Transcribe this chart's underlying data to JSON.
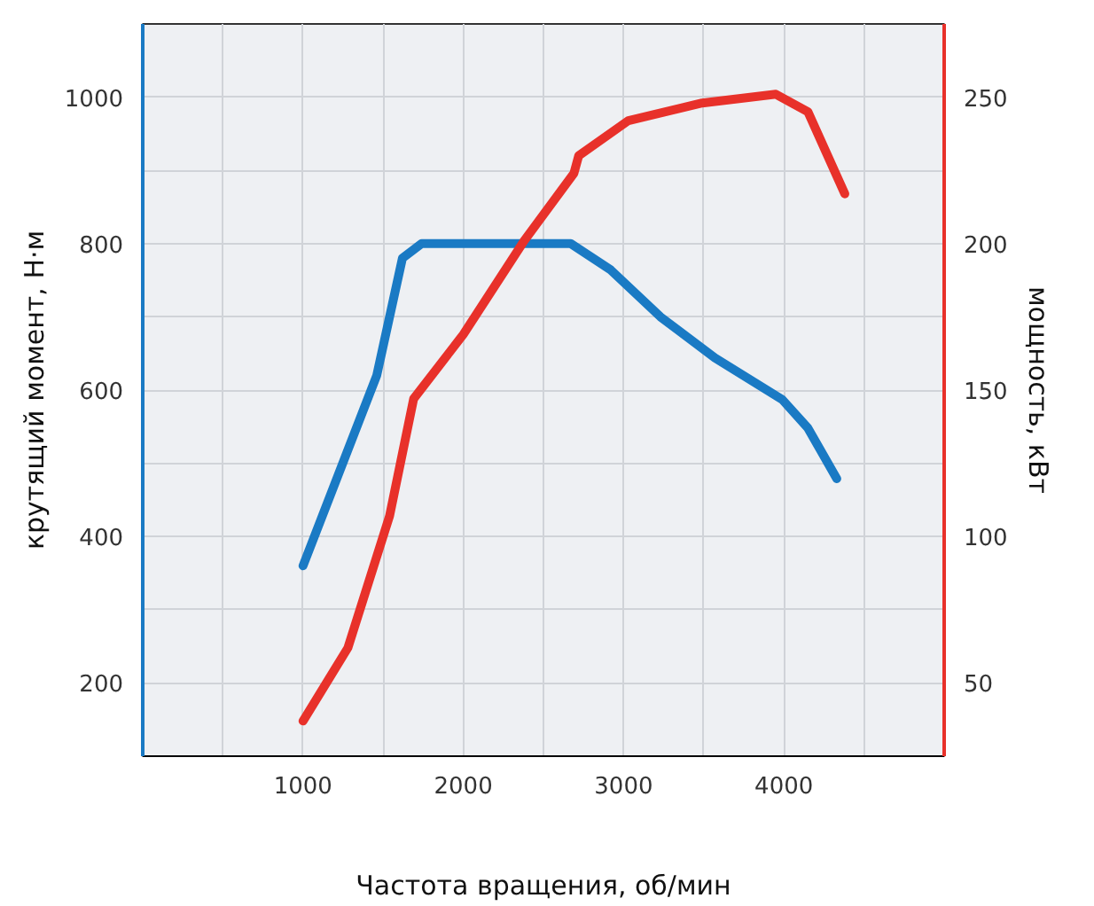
{
  "chart_data": {
    "type": "line",
    "xlabel": "Частота вращения, об/мин",
    "ylabel": "крутящий момент, Н·м",
    "y2label": "мощность, кВт",
    "xlim": [
      0,
      5000
    ],
    "xticks": [
      {
        "value": 500,
        "label": null
      },
      1000,
      {
        "value": 1500,
        "label": null
      },
      2000,
      {
        "value": 2500,
        "label": null
      },
      3000,
      {
        "value": 3500,
        "label": null
      },
      4000,
      {
        "value": 4500,
        "label": null
      }
    ],
    "ylim": [
      100,
      1100
    ],
    "yticks": [
      200,
      {
        "value": 300,
        "label": null
      },
      400,
      {
        "value": 500,
        "label": null
      },
      600,
      {
        "value": 700,
        "label": null
      },
      800,
      {
        "value": 900,
        "label": null
      },
      1000
    ],
    "y2lim": [
      25,
      275
    ],
    "y2ticks": [
      50,
      100,
      150,
      200,
      250
    ],
    "grid": true,
    "line_style": "solid",
    "marker": "none",
    "series": [
      {
        "color": "#1a7ac4",
        "x": [
          1000,
          1460,
          1620,
          1740,
          2670,
          2920,
          3230,
          3570,
          3990,
          4150,
          4330
        ],
        "values": [
          360,
          620,
          780,
          800,
          800,
          764,
          700,
          644,
          587,
          548,
          479
        ]
      },
      {
        "color": "#e8312a",
        "axis": "y2",
        "x": [
          1000,
          1280,
          1540,
          1690,
          2000,
          2380,
          2690,
          2720,
          3030,
          3490,
          3950,
          4150,
          4380
        ],
        "values": [
          37,
          62,
          107,
          147,
          169,
          201,
          224,
          230,
          242,
          248,
          251,
          245,
          217
        ]
      }
    ]
  }
}
